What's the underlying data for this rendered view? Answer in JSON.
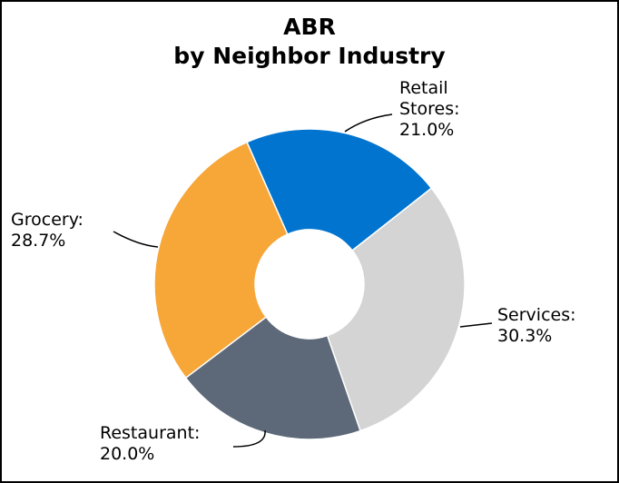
{
  "chart_data": {
    "type": "donut",
    "title": "ABR\nby Neighbor Industry",
    "categories": [
      "Retail Stores:",
      "Services:",
      "Restaurant:",
      "Grocery:"
    ],
    "values": [
      21.0,
      30.3,
      20.0,
      28.7
    ],
    "value_labels": [
      "21.0%",
      "30.3%",
      "20.0%",
      "28.7%"
    ],
    "colors": [
      "#0074cf",
      "#d4d4d4",
      "#5d6979",
      "#f7a638"
    ]
  }
}
